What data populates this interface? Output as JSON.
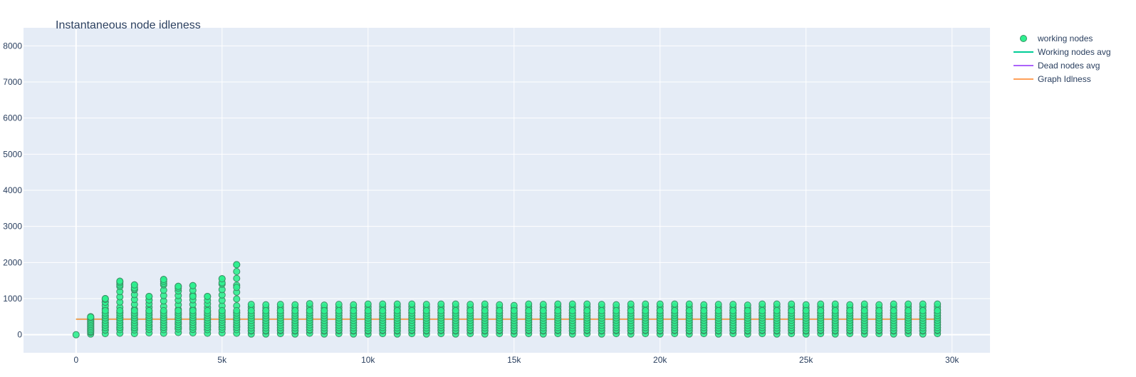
{
  "chart_data": {
    "type": "scatter",
    "title": "Instantaneous node idleness",
    "xlabel": "",
    "ylabel": "",
    "xlim": [
      -1800,
      31300
    ],
    "ylim": [
      -500,
      8500
    ],
    "grid": true,
    "legend_position": "top-right",
    "x_ticks": [
      0,
      5000,
      10000,
      15000,
      20000,
      25000,
      30000
    ],
    "x_tick_labels": [
      "0",
      "5k",
      "10k",
      "15k",
      "20k",
      "25k",
      "30k"
    ],
    "y_ticks": [
      0,
      1000,
      2000,
      3000,
      4000,
      5000,
      6000,
      7000,
      8000
    ],
    "y_tick_labels": [
      "0",
      "1000",
      "2000",
      "3000",
      "4000",
      "5000",
      "6000",
      "7000",
      "8000"
    ],
    "colors": {
      "plot_bg": "#e5ecf6",
      "grid": "#ffffff",
      "text": "#2a3f5f",
      "working_nodes": "#2ef08f",
      "working_nodes_border": "#3a8f65",
      "working_avg": "#00cc96",
      "dead_avg": "#ab63fa",
      "graph_idleness": "#ffa15a"
    },
    "series": [
      {
        "name": "working nodes",
        "mode": "markers",
        "x": [
          0,
          500,
          1000,
          1500,
          2000,
          2500,
          3000,
          3500,
          4000,
          4500,
          5000,
          5500,
          6000,
          6500,
          7000,
          7500,
          8000,
          8500,
          9000,
          9500,
          10000,
          10500,
          11000,
          11500,
          12000,
          12500,
          13000,
          13500,
          14000,
          14500,
          15000,
          15500,
          16000,
          16500,
          17000,
          17500,
          18000,
          18500,
          19000,
          19500,
          20000,
          20500,
          21000,
          21500,
          22000,
          22500,
          23000,
          23500,
          24000,
          24500,
          25000,
          25500,
          26000,
          26500,
          27000,
          27500,
          28000,
          28500,
          29000,
          29500
        ],
        "y_min": [
          0,
          20,
          30,
          40,
          30,
          50,
          40,
          60,
          50,
          40,
          50,
          40,
          20,
          20,
          30,
          20,
          40,
          20,
          30,
          20,
          20,
          30,
          20,
          30,
          20,
          30,
          20,
          30,
          20,
          30,
          20,
          30,
          20,
          30,
          20,
          30,
          20,
          30,
          20,
          30,
          20,
          30,
          20,
          30,
          20,
          30,
          20,
          30,
          20,
          30,
          20,
          30,
          20,
          30,
          20,
          30,
          20,
          30,
          20,
          30
        ],
        "y_max": [
          0,
          500,
          1000,
          1480,
          1380,
          1060,
          1530,
          1340,
          1360,
          1060,
          1550,
          1940,
          840,
          830,
          840,
          830,
          860,
          820,
          840,
          830,
          850,
          850,
          850,
          850,
          840,
          850,
          850,
          840,
          850,
          830,
          810,
          850,
          840,
          850,
          850,
          850,
          840,
          830,
          850,
          850,
          850,
          850,
          850,
          830,
          840,
          840,
          820,
          850,
          850,
          850,
          830,
          850,
          850,
          830,
          850,
          830,
          850,
          850,
          850,
          850
        ],
        "extra_y": [
          [],
          [
            490
          ],
          [
            900,
            980,
            1000
          ],
          [
            1380,
            1440,
            1480
          ],
          [
            1260,
            1300,
            1380
          ],
          [
            960,
            1060
          ],
          [
            1420,
            1480,
            1530
          ],
          [
            1290,
            1340
          ],
          [
            1060,
            1360
          ],
          [
            1060
          ],
          [
            1440,
            1550
          ],
          [
            1310,
            1940
          ],
          [],
          [],
          [],
          [],
          [],
          [],
          [],
          [],
          [],
          [],
          [],
          [],
          [],
          [],
          [],
          [],
          [],
          [],
          [],
          [],
          [],
          [],
          [],
          [],
          [],
          [],
          [],
          [],
          [],
          [],
          [],
          [],
          [],
          [],
          [],
          [],
          [],
          [],
          [],
          [],
          [],
          [],
          [],
          [],
          [],
          [],
          [],
          []
        ]
      },
      {
        "name": "Working nodes avg",
        "mode": "lines",
        "x": [
          0,
          29500
        ],
        "y": [
          430,
          430
        ]
      },
      {
        "name": "Dead nodes avg",
        "mode": "lines",
        "x": [],
        "y": []
      },
      {
        "name": "Graph Idlness",
        "mode": "lines",
        "x": [
          0,
          29500
        ],
        "y": [
          430,
          430
        ]
      }
    ]
  }
}
